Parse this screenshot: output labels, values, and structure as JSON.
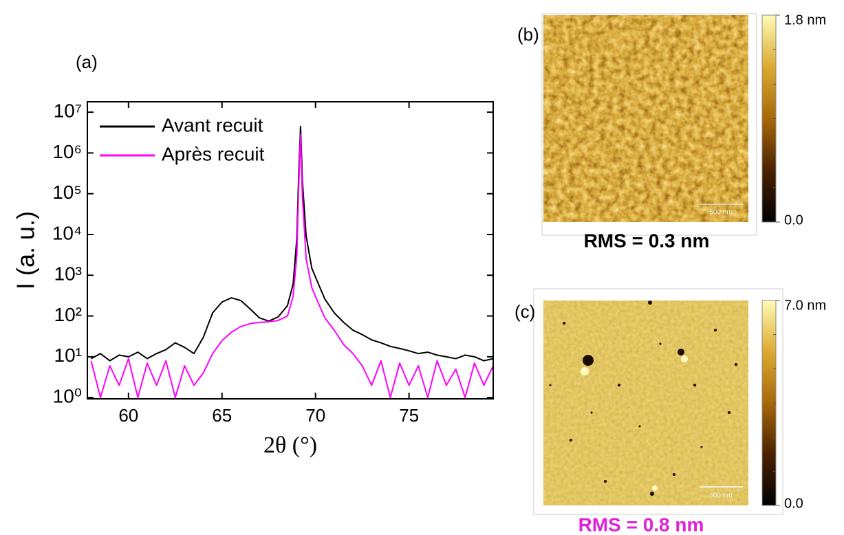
{
  "chart_data": {
    "type": "line",
    "annotations": [
      "(a)"
    ],
    "x_label": "2θ (°)",
    "y_label": "I (a. u.)",
    "yscale": "log",
    "legend": "upper left",
    "xlim": [
      57.8,
      79.5
    ],
    "xticks": [
      60,
      65,
      70,
      75
    ],
    "ylim": [
      0.93,
      18000000
    ],
    "yticks": [
      {
        "value": 1,
        "label": "10⁰"
      },
      {
        "value": 10,
        "label": "10¹"
      },
      {
        "value": 100,
        "label": "10²"
      },
      {
        "value": 1000,
        "label": "10³"
      },
      {
        "value": 10000,
        "label": "10⁴"
      },
      {
        "value": 100000,
        "label": "10⁵"
      },
      {
        "value": 1000000,
        "label": "10⁶"
      },
      {
        "value": 10000000,
        "label": "10⁷"
      }
    ],
    "x": [
      58,
      58.5,
      59,
      59.5,
      60,
      60.5,
      61,
      61.5,
      62,
      62.5,
      63,
      63.5,
      64,
      64.5,
      65,
      65.5,
      66,
      66.5,
      67,
      67.5,
      68,
      68.5,
      68.8,
      69,
      69.1,
      69.2,
      69.3,
      69.5,
      69.8,
      70,
      70.5,
      71,
      71.5,
      72,
      72.5,
      73,
      73.5,
      74,
      74.5,
      75,
      75.5,
      76,
      76.5,
      77,
      77.5,
      78,
      78.5,
      79,
      79.5
    ],
    "series": [
      {
        "name": "Avant recuit",
        "color": "#000000",
        "values": [
          9,
          12,
          8,
          11,
          10,
          13,
          9,
          12,
          15,
          22,
          17,
          12,
          30,
          120,
          220,
          280,
          240,
          150,
          90,
          75,
          95,
          180,
          600,
          8000,
          300000,
          4500000,
          200000,
          9000,
          1500,
          900,
          260,
          120,
          70,
          45,
          35,
          26,
          22,
          18,
          16,
          14,
          12,
          13,
          11,
          10,
          9,
          11,
          10,
          8,
          9
        ]
      },
      {
        "name": "Après recuit",
        "color": "#ff00ff",
        "values": [
          8,
          1,
          6,
          2,
          9,
          1,
          7,
          2,
          8,
          1,
          6,
          2,
          4,
          12,
          25,
          40,
          55,
          65,
          70,
          72,
          78,
          100,
          300,
          3000,
          150000,
          2800000,
          80000,
          2500,
          500,
          300,
          90,
          45,
          20,
          12,
          6,
          2,
          8,
          1,
          7,
          2,
          6,
          1,
          8,
          2,
          5,
          1,
          7,
          2,
          6
        ]
      }
    ]
  },
  "afm_panels": [
    {
      "label": "(b)",
      "scale_bar": "500 nm",
      "caption": "RMS = 0.3 nm",
      "caption_color": "#000000",
      "colormap": [
        "#000000",
        "#4a2200",
        "#a8680a",
        "#dcaa30",
        "#fffbb8"
      ],
      "clim": [
        0,
        1.8
      ],
      "cticks": [
        {
          "value": 1.8,
          "label": "1.8 nm"
        },
        {
          "value": 0,
          "label": "0.0"
        }
      ]
    },
    {
      "label": "(c)",
      "scale_bar": "500 nm",
      "caption": "RMS = 0.8 nm",
      "caption_color": "#e020d8",
      "colormap": [
        "#000000",
        "#4a2200",
        "#a8680a",
        "#dcaa30",
        "#fffbb8"
      ],
      "clim": [
        0,
        7.0
      ],
      "cticks": [
        {
          "value": 7.0,
          "label": "7.0 nm"
        },
        {
          "value": 0,
          "label": "0.0"
        }
      ]
    }
  ]
}
